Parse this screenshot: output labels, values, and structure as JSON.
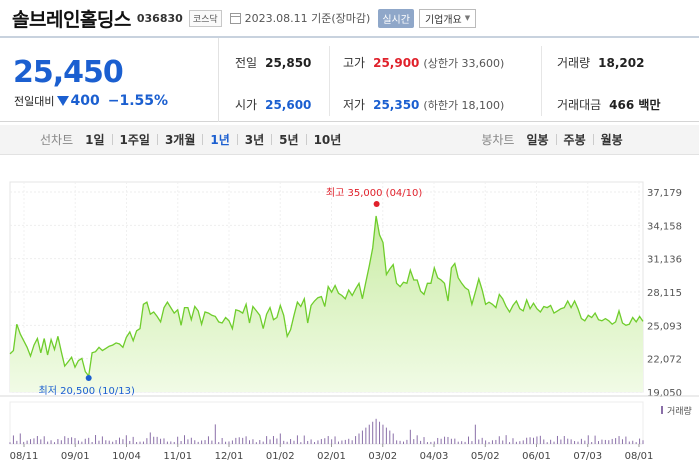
{
  "header": {
    "name": "솔브레인홀딩스",
    "code": "036830",
    "market": "코스닥",
    "date": "2023.08.11 기준(장마감)",
    "realtime": "실시간",
    "company_info": "기업개요"
  },
  "price": {
    "current": "25,450",
    "change_label": "전일대비",
    "change_amount": "400",
    "change_percent": "−1.55%"
  },
  "stats": {
    "prev_close_label": "전일",
    "prev_close": "25,850",
    "high_label": "고가",
    "high": "25,900",
    "upper_limit": "(상한가 33,600)",
    "volume_label": "거래량",
    "volume": "18,202",
    "open_label": "시가",
    "open": "25,600",
    "low_label": "저가",
    "low": "25,350",
    "lower_limit": "(하한가 18,100)",
    "value_label": "거래대금",
    "value": "466 백만"
  },
  "periods": {
    "line_label": "선차트",
    "items": [
      "1일",
      "1주일",
      "3개월",
      "1년",
      "3년",
      "5년",
      "10년"
    ],
    "selected": "1년",
    "candle_label": "봉차트",
    "candle_items": [
      "일봉",
      "주봉",
      "월봉"
    ]
  },
  "colors": {
    "accent": "#1b5fd0",
    "up": "#e0212b",
    "line": "#6fcd2c",
    "fill": "#dff4c8",
    "volume": "#8a6fa8"
  },
  "chart_data": {
    "type": "area",
    "ylim": [
      19050,
      37179
    ],
    "yticks": [
      "37,179",
      "34,158",
      "31,136",
      "28,115",
      "25,093",
      "22,072",
      "19,050"
    ],
    "xticks": [
      "08/11",
      "09/01",
      "10/04",
      "11/01",
      "12/01",
      "01/02",
      "02/01",
      "03/02",
      "04/03",
      "05/02",
      "06/01",
      "07/03",
      "08/01"
    ],
    "max_label": "최고 35,000 (04/10)",
    "min_label": "최저 20,500 (10/13)",
    "volume_label": "거래량",
    "series": [
      {
        "values": [
          22500,
          22800,
          25200,
          24300,
          23700,
          23100,
          22300,
          23300,
          23900,
          22600,
          23900,
          22400,
          23800,
          22900,
          24100,
          22700,
          21400,
          21800,
          22200,
          21300,
          21900,
          22100,
          20900,
          20500,
          22600,
          22700,
          23100,
          22800,
          23000,
          23200,
          23300,
          23500,
          23400,
          23100,
          24000,
          24500,
          23700,
          24600,
          24800,
          27000,
          27200,
          26100,
          26300,
          25900,
          25400,
          26700,
          27200,
          26700,
          26200,
          26500,
          25100,
          26700,
          26700,
          25600,
          26800,
          26400,
          25200,
          26300,
          26200,
          26000,
          25900,
          25400,
          25300,
          25800,
          25500,
          24800,
          26500,
          26400,
          26200,
          27000,
          25300,
          26800,
          26400,
          26000,
          24800,
          26100,
          26700,
          25600,
          25800,
          26900,
          26000,
          24100,
          24700,
          26000,
          27200,
          26800,
          27500,
          25300,
          26900,
          27300,
          27600,
          27700,
          26800,
          28600,
          28100,
          28700,
          28000,
          27800,
          27500,
          28300,
          27800,
          28400,
          28900,
          27500,
          29000,
          30500,
          32100,
          35000,
          33300,
          32600,
          29700,
          30200,
          30600,
          28900,
          28600,
          29000,
          28900,
          30100,
          29200,
          29200,
          28200,
          27900,
          28900,
          28900,
          30300,
          29400,
          29200,
          28900,
          27300,
          30300,
          30700,
          29400,
          28900,
          28500,
          28300,
          27000,
          28100,
          29300,
          28300,
          27000,
          27200,
          27000,
          26700,
          27900,
          27500,
          26800,
          26300,
          26900,
          27300,
          26600,
          26400,
          27400,
          26600,
          27100,
          26600,
          26300,
          26800,
          26700,
          26900,
          26200,
          26400,
          26600,
          26700,
          27300,
          26700,
          27300,
          26600,
          25700,
          25500,
          26000,
          25800,
          26200,
          25600,
          25500,
          25700,
          25500,
          25200,
          25400,
          26400,
          25300,
          25100,
          25200,
          25800,
          25400,
          25900,
          25450
        ]
      }
    ]
  }
}
